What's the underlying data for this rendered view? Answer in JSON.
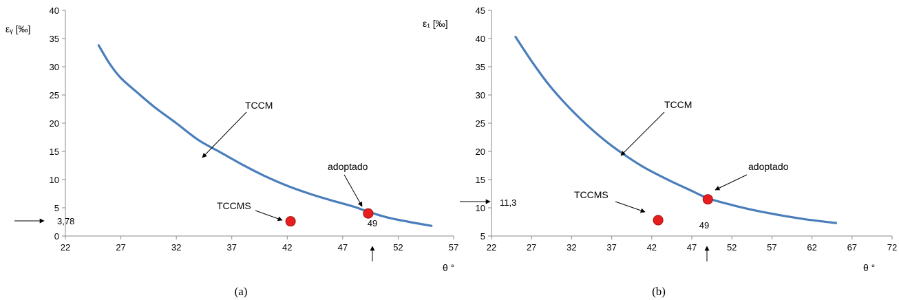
{
  "chart_data": [
    {
      "type": "line",
      "ylabel": "εᵧ  [‰]",
      "xlabel": "θ °",
      "caption": "(a)",
      "xlim": [
        22,
        57
      ],
      "ylim": [
        0,
        40
      ],
      "xticks": [
        22,
        27,
        32,
        37,
        42,
        47,
        52,
        57
      ],
      "yticks": [
        0,
        5,
        10,
        15,
        20,
        25,
        30,
        35,
        40
      ],
      "grid": false,
      "series": [
        {
          "name": "TCCM",
          "x": [
            25,
            26,
            27,
            28.5,
            30,
            32,
            34,
            36,
            38,
            40,
            42,
            44,
            46,
            48,
            49.3,
            51,
            53,
            55
          ],
          "y": [
            33.8,
            30.5,
            28.0,
            25.4,
            22.9,
            20.0,
            17.0,
            14.8,
            12.6,
            10.6,
            8.9,
            7.5,
            6.3,
            5.2,
            4.3,
            3.3,
            2.5,
            1.8
          ]
        }
      ],
      "points": [
        {
          "name": "TCCMS",
          "x": 42.3,
          "y": 2.6
        },
        {
          "name": "adoptado",
          "x": 49.3,
          "y": 4.0
        }
      ],
      "annotations": {
        "curve_label": "TCCM",
        "adopted_label": "adoptado",
        "tccms_label": "TCCMS",
        "y_marker": "3,78",
        "x_marker": "49"
      }
    },
    {
      "type": "line",
      "ylabel": "ε₁  [‰]",
      "xlabel": "θ °",
      "caption": "(b)",
      "xlim": [
        22,
        72
      ],
      "ylim": [
        5,
        45
      ],
      "xticks": [
        22,
        27,
        32,
        37,
        42,
        47,
        52,
        57,
        62,
        67,
        72
      ],
      "yticks": [
        5,
        10,
        15,
        20,
        25,
        30,
        35,
        40,
        45
      ],
      "grid": false,
      "series": [
        {
          "name": "TCCM",
          "x": [
            25,
            27,
            29,
            31,
            33,
            35,
            37,
            39,
            41,
            43,
            45,
            47,
            49,
            52,
            55,
            58,
            61,
            65
          ],
          "y": [
            40.3,
            36.0,
            32.1,
            28.8,
            25.9,
            23.3,
            21.0,
            19.0,
            17.2,
            15.7,
            14.3,
            13.0,
            11.7,
            10.5,
            9.5,
            8.7,
            8.0,
            7.3
          ]
        }
      ],
      "points": [
        {
          "name": "TCCMS",
          "x": 42.8,
          "y": 7.8
        },
        {
          "name": "adoptado",
          "x": 49,
          "y": 11.5
        }
      ],
      "annotations": {
        "curve_label": "TCCM",
        "adopted_label": "adoptado",
        "tccms_label": "TCCMS",
        "y_marker": "11,3",
        "x_marker": "49"
      }
    }
  ]
}
